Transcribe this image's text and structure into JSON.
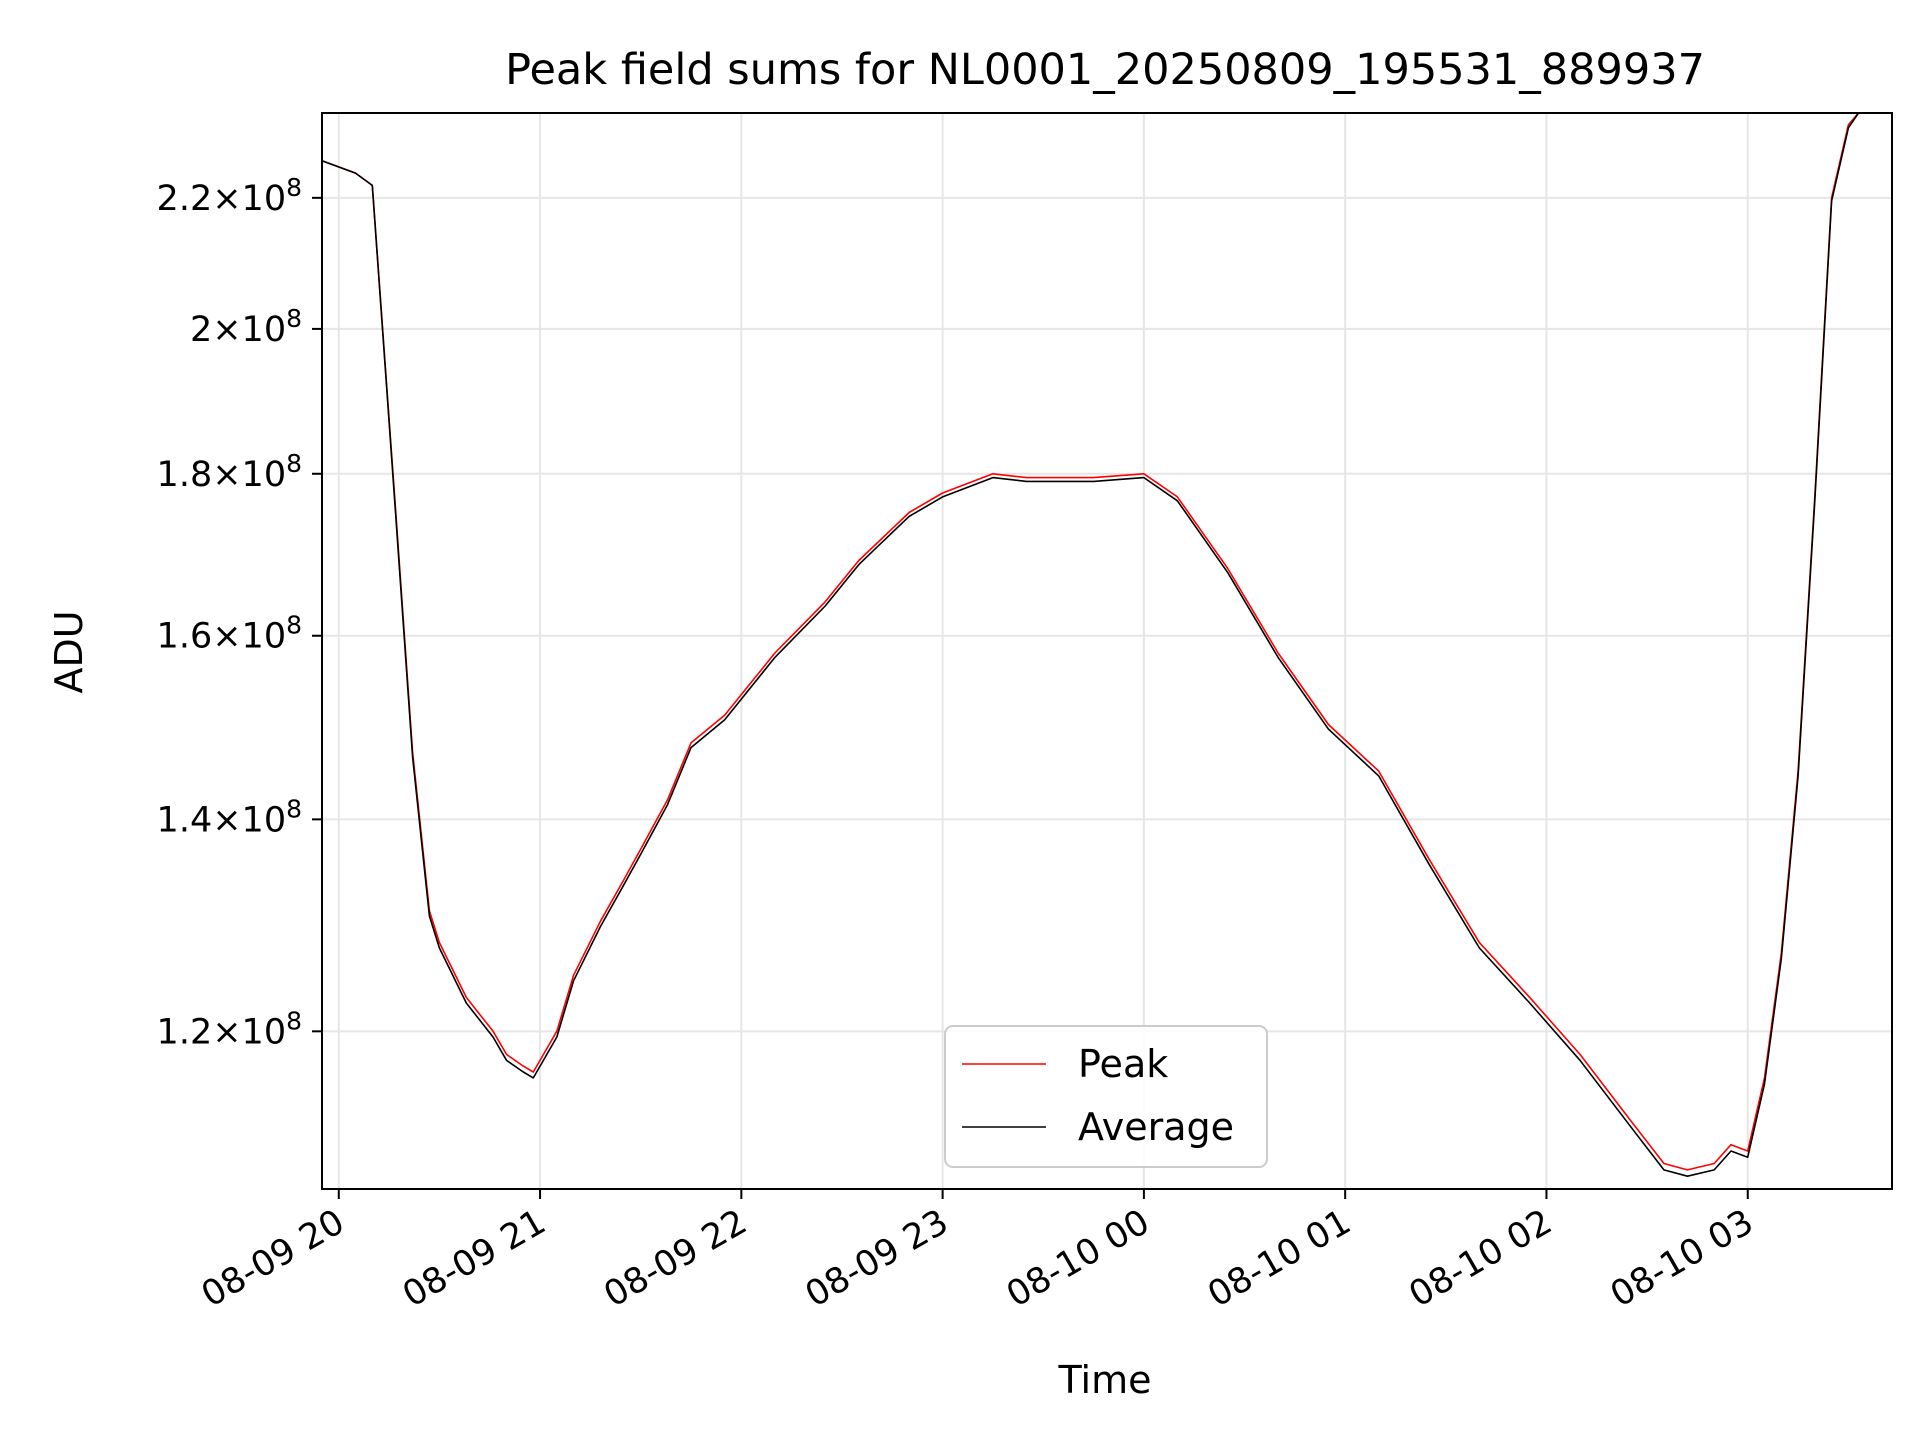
{
  "chart_data": {
    "type": "line",
    "title": "Peak field sums for NL0001_20250809_195531_889937",
    "xlabel": "Time",
    "ylabel": "ADU",
    "y_scale": "log",
    "ylim": [
      107000000,
      234000000
    ],
    "xlim": [
      "2025-08-09 19:55",
      "2025-08-10 03:43"
    ],
    "grid": true,
    "legend_position": "bottom-center",
    "x_ticks": [
      {
        "value": "2025-08-09 20:00",
        "label": "08-09 20"
      },
      {
        "value": "2025-08-09 21:00",
        "label": "08-09 21"
      },
      {
        "value": "2025-08-09 22:00",
        "label": "08-09 22"
      },
      {
        "value": "2025-08-09 23:00",
        "label": "08-09 23"
      },
      {
        "value": "2025-08-10 00:00",
        "label": "08-10 00"
      },
      {
        "value": "2025-08-10 01:00",
        "label": "08-10 01"
      },
      {
        "value": "2025-08-10 02:00",
        "label": "08-10 02"
      },
      {
        "value": "2025-08-10 03:00",
        "label": "08-10 03"
      }
    ],
    "y_ticks": [
      {
        "value": 120000000,
        "mantissa": "1.2",
        "exponent": "8"
      },
      {
        "value": 140000000,
        "mantissa": "1.4",
        "exponent": "8"
      },
      {
        "value": 160000000,
        "mantissa": "1.6",
        "exponent": "8"
      },
      {
        "value": 180000000,
        "mantissa": "1.8",
        "exponent": "8"
      },
      {
        "value": 200000000,
        "mantissa": "2",
        "exponent": "8"
      },
      {
        "value": 220000000,
        "mantissa": "2.2",
        "exponent": "8"
      }
    ],
    "series": [
      {
        "name": "Peak",
        "color": "#ff0000",
        "x": [
          "2025-08-09 19:55",
          "2025-08-09 20:05",
          "2025-08-09 20:10",
          "2025-08-09 20:17",
          "2025-08-09 20:22",
          "2025-08-09 20:27",
          "2025-08-09 20:30",
          "2025-08-09 20:38",
          "2025-08-09 20:46",
          "2025-08-09 20:50",
          "2025-08-09 20:55",
          "2025-08-09 20:58",
          "2025-08-09 21:05",
          "2025-08-09 21:10",
          "2025-08-09 21:18",
          "2025-08-09 21:25",
          "2025-08-09 21:30",
          "2025-08-09 21:38",
          "2025-08-09 21:45",
          "2025-08-09 21:55",
          "2025-08-09 22:10",
          "2025-08-09 22:25",
          "2025-08-09 22:35",
          "2025-08-09 22:50",
          "2025-08-09 23:00",
          "2025-08-09 23:15",
          "2025-08-09 23:25",
          "2025-08-09 23:45",
          "2025-08-10 00:00",
          "2025-08-10 00:10",
          "2025-08-10 00:25",
          "2025-08-10 00:40",
          "2025-08-10 00:55",
          "2025-08-10 01:10",
          "2025-08-10 01:25",
          "2025-08-10 01:40",
          "2025-08-10 01:55",
          "2025-08-10 02:10",
          "2025-08-10 02:25",
          "2025-08-10 02:35",
          "2025-08-10 02:42",
          "2025-08-10 02:50",
          "2025-08-10 02:55",
          "2025-08-10 03:00",
          "2025-08-10 03:05",
          "2025-08-10 03:10",
          "2025-08-10 03:15",
          "2025-08-10 03:20",
          "2025-08-10 03:25",
          "2025-08-10 03:30",
          "2025-08-10 03:33"
        ],
        "values": [
          226000000,
          224000000,
          222000000,
          175000000,
          147000000,
          131000000,
          128000000,
          123000000,
          120000000,
          118000000,
          117000000,
          116500000,
          120000000,
          125000000,
          130000000,
          134000000,
          137000000,
          142000000,
          148000000,
          151000000,
          158000000,
          164000000,
          169000000,
          175000000,
          177500000,
          180000000,
          179500000,
          179500000,
          180000000,
          177000000,
          168000000,
          158000000,
          150000000,
          145000000,
          136000000,
          128000000,
          123000000,
          118000000,
          112500000,
          109000000,
          108500000,
          109000000,
          110500000,
          110000000,
          116000000,
          127000000,
          145000000,
          177000000,
          220000000,
          232000000,
          234000000
        ]
      },
      {
        "name": "Average",
        "color": "#000000",
        "x": [
          "2025-08-09 19:55",
          "2025-08-09 20:05",
          "2025-08-09 20:10",
          "2025-08-09 20:17",
          "2025-08-09 20:22",
          "2025-08-09 20:27",
          "2025-08-09 20:30",
          "2025-08-09 20:38",
          "2025-08-09 20:46",
          "2025-08-09 20:50",
          "2025-08-09 20:55",
          "2025-08-09 20:58",
          "2025-08-09 21:05",
          "2025-08-09 21:10",
          "2025-08-09 21:18",
          "2025-08-09 21:25",
          "2025-08-09 21:30",
          "2025-08-09 21:38",
          "2025-08-09 21:45",
          "2025-08-09 21:55",
          "2025-08-09 22:10",
          "2025-08-09 22:25",
          "2025-08-09 22:35",
          "2025-08-09 22:50",
          "2025-08-09 23:00",
          "2025-08-09 23:15",
          "2025-08-09 23:25",
          "2025-08-09 23:45",
          "2025-08-10 00:00",
          "2025-08-10 00:10",
          "2025-08-10 00:25",
          "2025-08-10 00:40",
          "2025-08-10 00:55",
          "2025-08-10 01:10",
          "2025-08-10 01:25",
          "2025-08-10 01:40",
          "2025-08-10 01:55",
          "2025-08-10 02:10",
          "2025-08-10 02:25",
          "2025-08-10 02:35",
          "2025-08-10 02:42",
          "2025-08-10 02:50",
          "2025-08-10 02:55",
          "2025-08-10 03:00",
          "2025-08-10 03:05",
          "2025-08-10 03:10",
          "2025-08-10 03:15",
          "2025-08-10 03:20",
          "2025-08-10 03:25",
          "2025-08-10 03:30",
          "2025-08-10 03:33"
        ],
        "values": [
          226000000,
          224000000,
          222000000,
          174500000,
          146500000,
          130500000,
          127500000,
          122500000,
          119500000,
          117500000,
          116500000,
          116000000,
          119500000,
          124500000,
          129500000,
          133500000,
          136500000,
          141500000,
          147500000,
          150500000,
          157500000,
          163500000,
          168500000,
          174500000,
          177000000,
          179500000,
          179000000,
          179000000,
          179500000,
          176500000,
          167500000,
          157500000,
          149500000,
          144500000,
          135500000,
          127500000,
          122500000,
          117500000,
          112000000,
          108500000,
          108000000,
          108500000,
          110000000,
          109500000,
          115500000,
          126500000,
          144500000,
          176500000,
          219500000,
          231500000,
          234000000
        ]
      }
    ]
  }
}
